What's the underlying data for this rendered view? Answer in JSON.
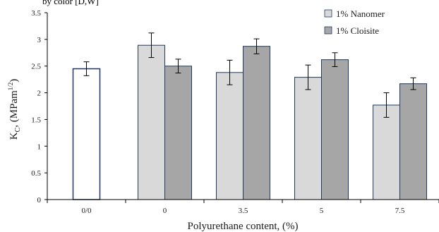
{
  "header_fragment": "by color [D,W]",
  "chart_data": {
    "type": "bar",
    "title": "",
    "xlabel": "Polyurethane content, (%)",
    "ylabel_main": "K",
    "ylabel_sub": "C",
    "ylabel_rest": ", (MPam",
    "ylabel_exp": "1/2",
    "ylabel_close": ")",
    "ylim": [
      0,
      3.5
    ],
    "yticks": [
      "0",
      "0.5",
      "1",
      "1.5",
      "2",
      "2.5",
      "3",
      "3.5"
    ],
    "ytick_values": [
      0,
      0.5,
      1,
      1.5,
      2,
      2.5,
      3,
      3.5
    ],
    "categories": [
      "0/0",
      "0",
      "3.5",
      "5",
      "7.5"
    ],
    "grid": false,
    "legend_position": "top-right",
    "series": [
      {
        "name": "1% Nanomer",
        "color": "#d9d9d9",
        "values": [
          null,
          2.89,
          2.38,
          2.29,
          1.77
        ],
        "errors": [
          null,
          0.23,
          0.23,
          0.23,
          0.23
        ]
      },
      {
        "name": "1% Cloisite",
        "color": "#a6a6a6",
        "values": [
          null,
          2.5,
          2.87,
          2.62,
          2.17
        ],
        "errors": [
          null,
          0.13,
          0.14,
          0.13,
          0.11
        ]
      }
    ],
    "reference": {
      "category": "0/0",
      "value": 2.45,
      "error": 0.13,
      "color": "#ffffff"
    },
    "bar_outline_color": "#1f3864"
  }
}
